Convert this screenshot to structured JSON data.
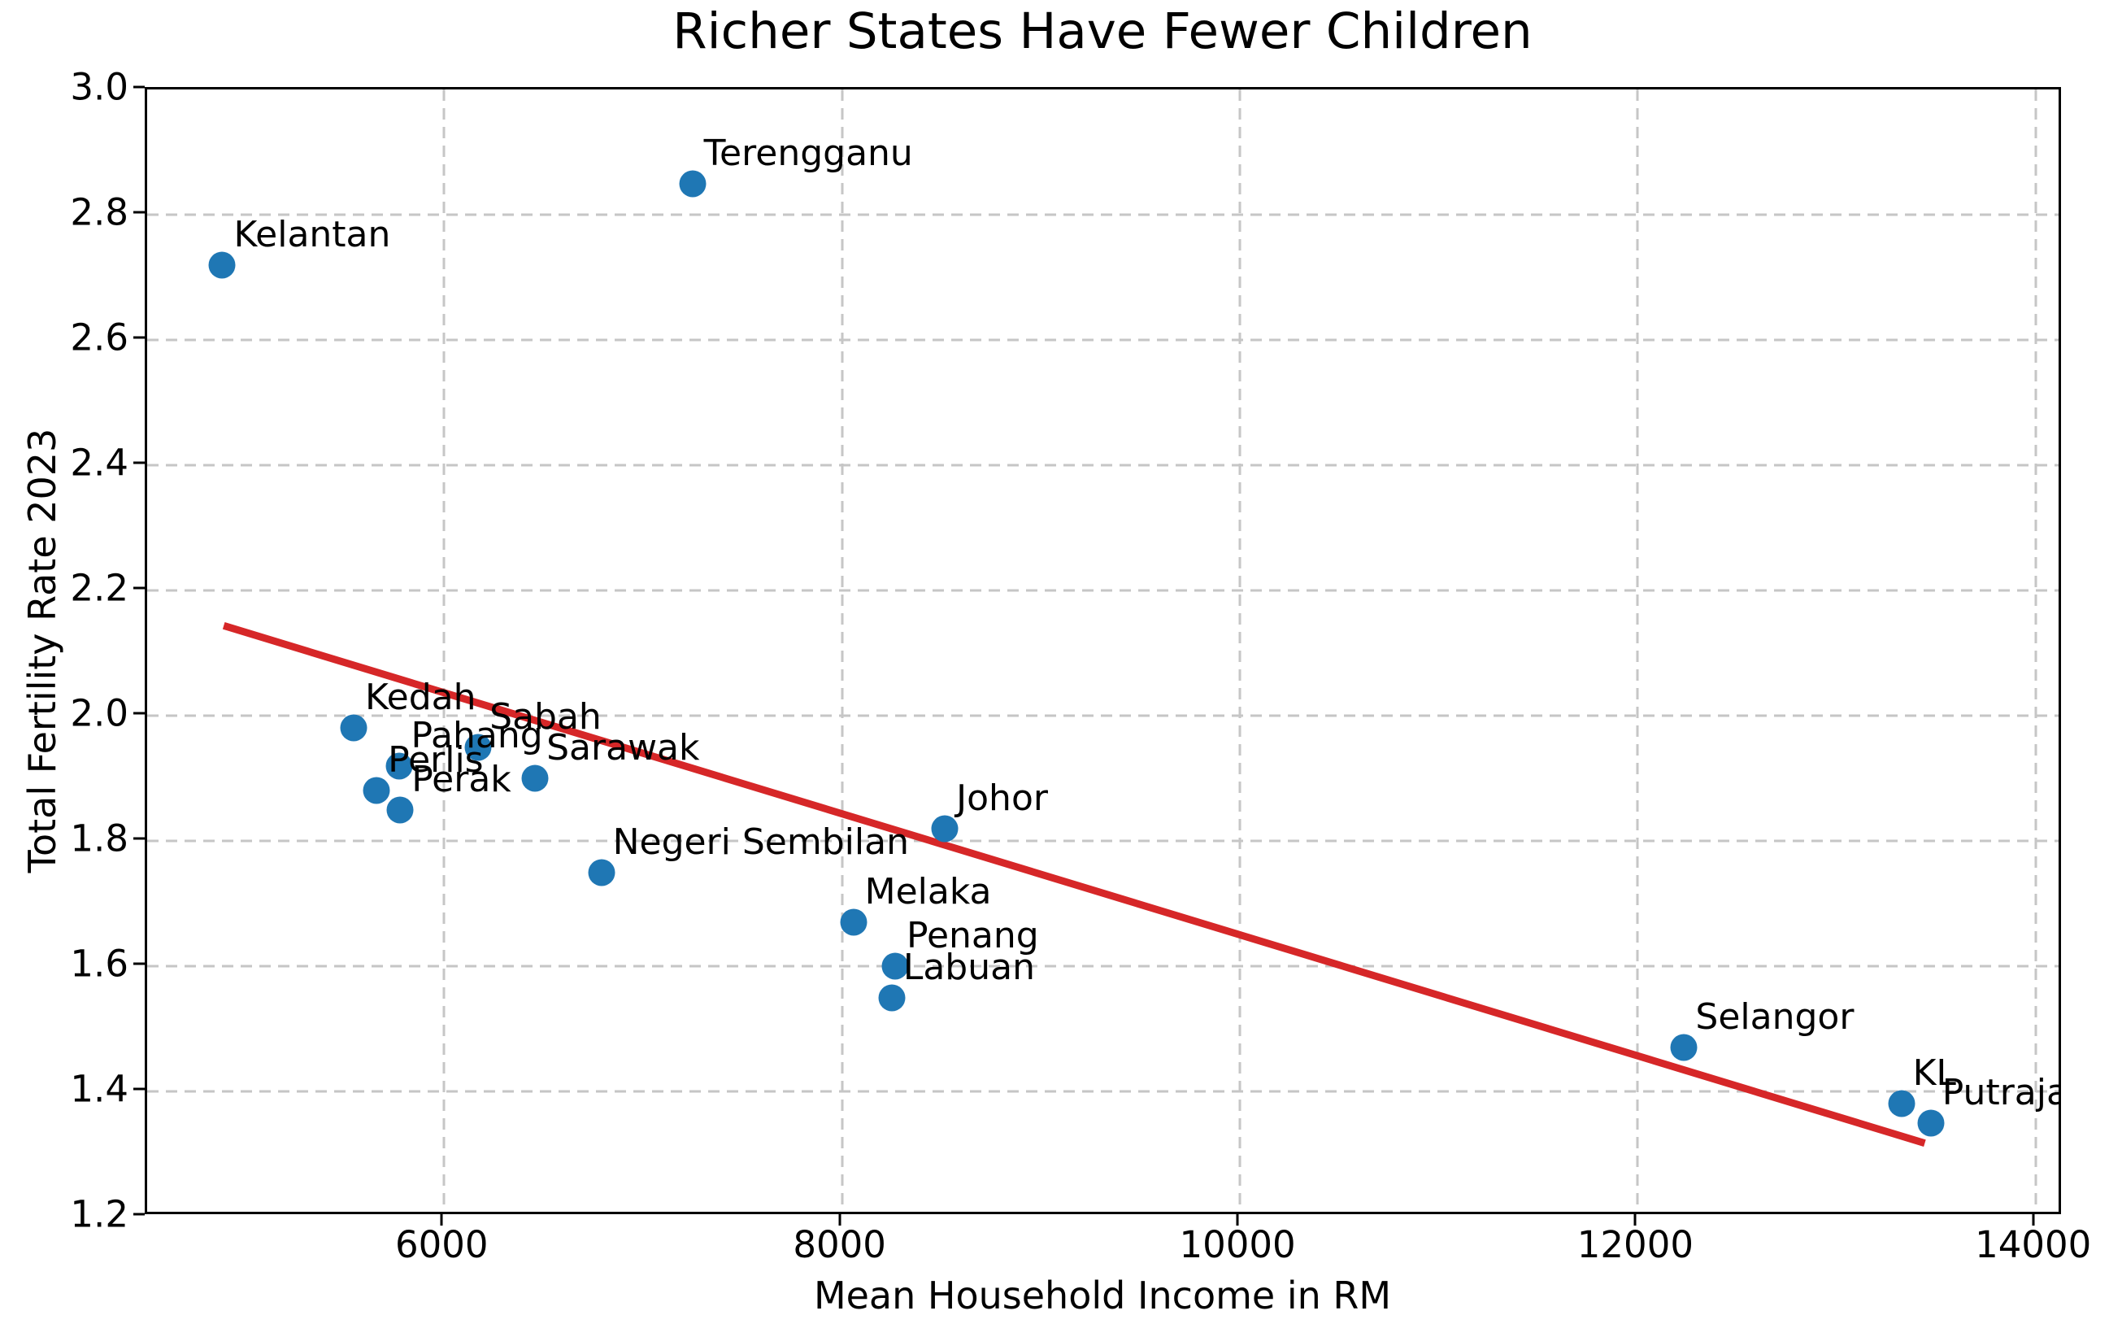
{
  "title": "Richer States Have Fewer Children",
  "axes": {
    "x": {
      "label": "Mean Household Income in RM",
      "min": 4507,
      "max": 14140,
      "tick_values": [
        6000,
        8000,
        10000,
        12000,
        14000
      ],
      "tick_labels": [
        "6000",
        "8000",
        "10000",
        "12000",
        "14000"
      ]
    },
    "y": {
      "label": "Total Fertility Rate 2023",
      "min": 1.2,
      "max": 3.0,
      "tick_values": [
        1.2,
        1.4,
        1.6,
        1.8,
        2.0,
        2.2,
        2.4,
        2.6,
        2.8,
        3.0
      ],
      "tick_labels": [
        "1.2",
        "1.4",
        "1.6",
        "1.8",
        "2.0",
        "2.2",
        "2.4",
        "2.6",
        "2.8",
        "3.0"
      ]
    }
  },
  "chart_data": {
    "type": "scatter",
    "title": "Richer States Have Fewer Children",
    "xlabel": "Mean Household Income in RM",
    "ylabel": "Total Fertility Rate 2023",
    "xlim": [
      4507,
      14140
    ],
    "ylim": [
      1.2,
      3.0
    ],
    "grid": true,
    "points": [
      {
        "label": "Kelantan",
        "x": 4885,
        "y": 2.72
      },
      {
        "label": "Kedah",
        "x": 5545,
        "y": 1.98
      },
      {
        "label": "Perlis",
        "x": 5660,
        "y": 1.88
      },
      {
        "label": "Pahang",
        "x": 5776,
        "y": 1.92
      },
      {
        "label": "Perak",
        "x": 5779,
        "y": 1.85
      },
      {
        "label": "Sabah",
        "x": 6171,
        "y": 1.95
      },
      {
        "label": "Sarawak",
        "x": 6457,
        "y": 1.9
      },
      {
        "label": "Negeri Sembilan",
        "x": 6790,
        "y": 1.75
      },
      {
        "label": "Terengganu",
        "x": 7248,
        "y": 2.85
      },
      {
        "label": "Melaka",
        "x": 8057,
        "y": 1.67
      },
      {
        "label": "Labuan",
        "x": 8250,
        "y": 1.55
      },
      {
        "label": "Penang",
        "x": 8267,
        "y": 1.6
      },
      {
        "label": "Johor",
        "x": 8517,
        "y": 1.82
      },
      {
        "label": "Selangor",
        "x": 12233,
        "y": 1.47
      },
      {
        "label": "KL",
        "x": 13325,
        "y": 1.38
      },
      {
        "label": "Putrajaya",
        "x": 13473,
        "y": 1.35
      }
    ],
    "trend_line": {
      "x": [
        4885,
        13473
      ],
      "y": [
        2.14,
        1.31
      ]
    },
    "legend": null,
    "style": {
      "point_color": "#1f77b4",
      "trend_color": "#d62728",
      "grid_color": "#c6c6c6",
      "axis_color": "#000000"
    }
  }
}
